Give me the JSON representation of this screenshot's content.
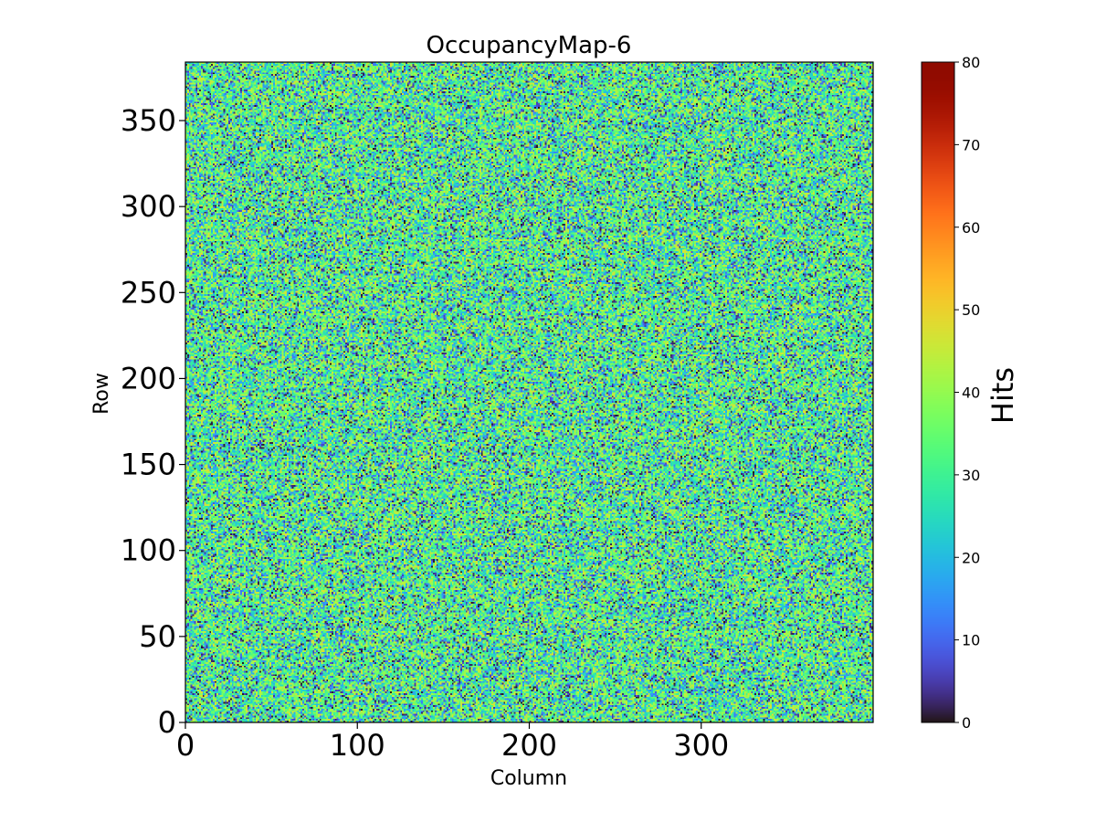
{
  "chart_data": {
    "type": "heatmap",
    "title": "OccupancyMap-6",
    "xlabel": "Column",
    "ylabel": "Row",
    "xlim": [
      0,
      400
    ],
    "ylim": [
      0,
      384
    ],
    "x_ticks": [
      0,
      100,
      200,
      300
    ],
    "y_ticks": [
      0,
      50,
      100,
      150,
      200,
      250,
      300,
      350
    ],
    "colorbar": {
      "label": "Hits",
      "range": [
        0,
        80
      ],
      "ticks": [
        0,
        10,
        20,
        30,
        40,
        50,
        60,
        70,
        80
      ],
      "colormap": "turbo"
    },
    "grid": false,
    "legend": "none",
    "value_distribution": "random noise, mostly 0–50 hits (mean ≈ 30)"
  }
}
